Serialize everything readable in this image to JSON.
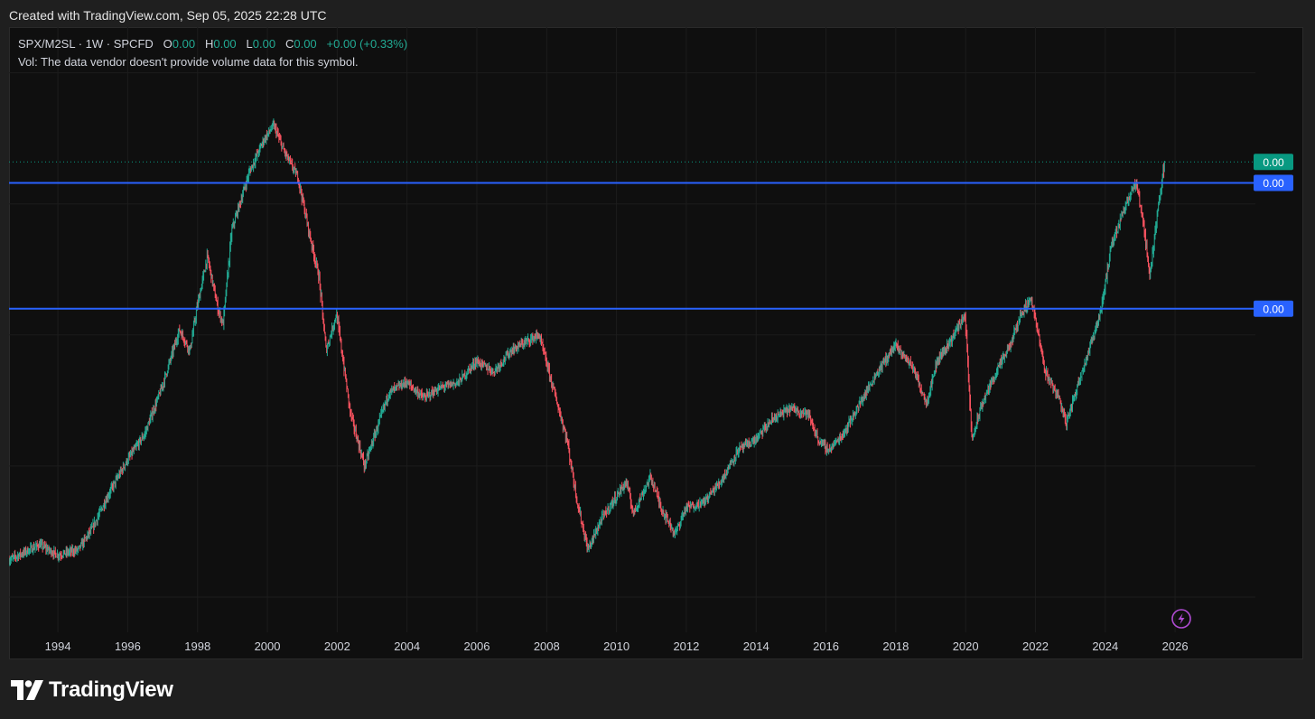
{
  "credit_text": "Created with TradingView.com, Sep 05, 2025 22:28 UTC",
  "legend": {
    "symbol": "SPX/M2SL · 1W · SPCFD",
    "o_label": "O",
    "o_value": "0.00",
    "h_label": "H",
    "h_value": "0.00",
    "l_label": "L",
    "l_value": "0.00",
    "c_label": "C",
    "c_value": "0.00",
    "change": "+0.00 (+0.33%)",
    "vol_text": "Vol: The data vendor doesn't provide volume data for this symbol."
  },
  "brand": {
    "name": "TradingView"
  },
  "colors": {
    "background": "#0f0f0f",
    "up": "#22ab94",
    "down": "#f7525f",
    "line": "#2962ff",
    "price_tag": "#089981",
    "grid": "#1c1c1c",
    "replay_icon": "#9c27b0"
  },
  "chart_data": {
    "type": "line",
    "x_axis": {
      "ticks": [
        "1994",
        "1996",
        "1998",
        "2000",
        "2002",
        "2004",
        "2006",
        "2008",
        "2010",
        "2012",
        "2014",
        "2016",
        "2018",
        "2020",
        "2022",
        "2024",
        "2026"
      ],
      "range": [
        1992.6,
        2028.3
      ]
    },
    "y_range": [
      0.2,
      1.32
    ],
    "grid": true,
    "series": [
      {
        "style": "candlestick",
        "x": [
          1992.6,
          1993.5,
          1994,
          1994.6,
          1995,
          1995.5,
          1996,
          1996.5,
          1997,
          1997.5,
          1997.8,
          1998,
          1998.3,
          1998.6,
          1998.75,
          1999,
          1999.5,
          1999.9,
          2000.2,
          2000.5,
          2000.9,
          2001.2,
          2001.5,
          2001.7,
          2002,
          2002.4,
          2002.8,
          2003.1,
          2003.5,
          2004,
          2004.5,
          2005,
          2005.5,
          2006,
          2006.5,
          2007,
          2007.5,
          2007.8,
          2008.2,
          2008.6,
          2008.9,
          2009.2,
          2009.6,
          2010,
          2010.3,
          2010.5,
          2011,
          2011.3,
          2011.7,
          2012,
          2012.5,
          2013,
          2013.5,
          2014,
          2014.5,
          2015,
          2015.5,
          2015.8,
          2016.1,
          2016.5,
          2017,
          2017.5,
          2018,
          2018.5,
          2018.9,
          2019.2,
          2019.6,
          2020,
          2020.2,
          2020.5,
          2020.9,
          2021.3,
          2021.6,
          2021.9,
          2022.3,
          2022.7,
          2022.9,
          2023.3,
          2023.6,
          2023.9,
          2024.2,
          2024.6,
          2024.9,
          2025.1,
          2025.3,
          2025.5,
          2025.7
        ],
        "values": [
          0.32,
          0.35,
          0.33,
          0.34,
          0.38,
          0.45,
          0.51,
          0.56,
          0.65,
          0.76,
          0.72,
          0.8,
          0.9,
          0.8,
          0.77,
          0.95,
          1.06,
          1.12,
          1.15,
          1.1,
          1.05,
          0.95,
          0.86,
          0.72,
          0.79,
          0.6,
          0.5,
          0.56,
          0.64,
          0.66,
          0.63,
          0.65,
          0.66,
          0.7,
          0.68,
          0.72,
          0.74,
          0.75,
          0.65,
          0.55,
          0.43,
          0.34,
          0.4,
          0.44,
          0.47,
          0.41,
          0.48,
          0.42,
          0.37,
          0.42,
          0.43,
          0.47,
          0.53,
          0.55,
          0.59,
          0.61,
          0.6,
          0.55,
          0.53,
          0.56,
          0.62,
          0.68,
          0.73,
          0.69,
          0.62,
          0.7,
          0.74,
          0.79,
          0.55,
          0.62,
          0.68,
          0.73,
          0.79,
          0.82,
          0.68,
          0.63,
          0.58,
          0.67,
          0.73,
          0.8,
          0.92,
          1.0,
          1.04,
          0.97,
          0.86,
          0.98,
          1.07
        ]
      }
    ],
    "horizontal_lines": [
      {
        "y": 1.04,
        "label": "0.00"
      },
      {
        "y": 0.8,
        "label": "0.00"
      }
    ],
    "last_price": {
      "y": 1.08,
      "label": "0.00"
    }
  }
}
